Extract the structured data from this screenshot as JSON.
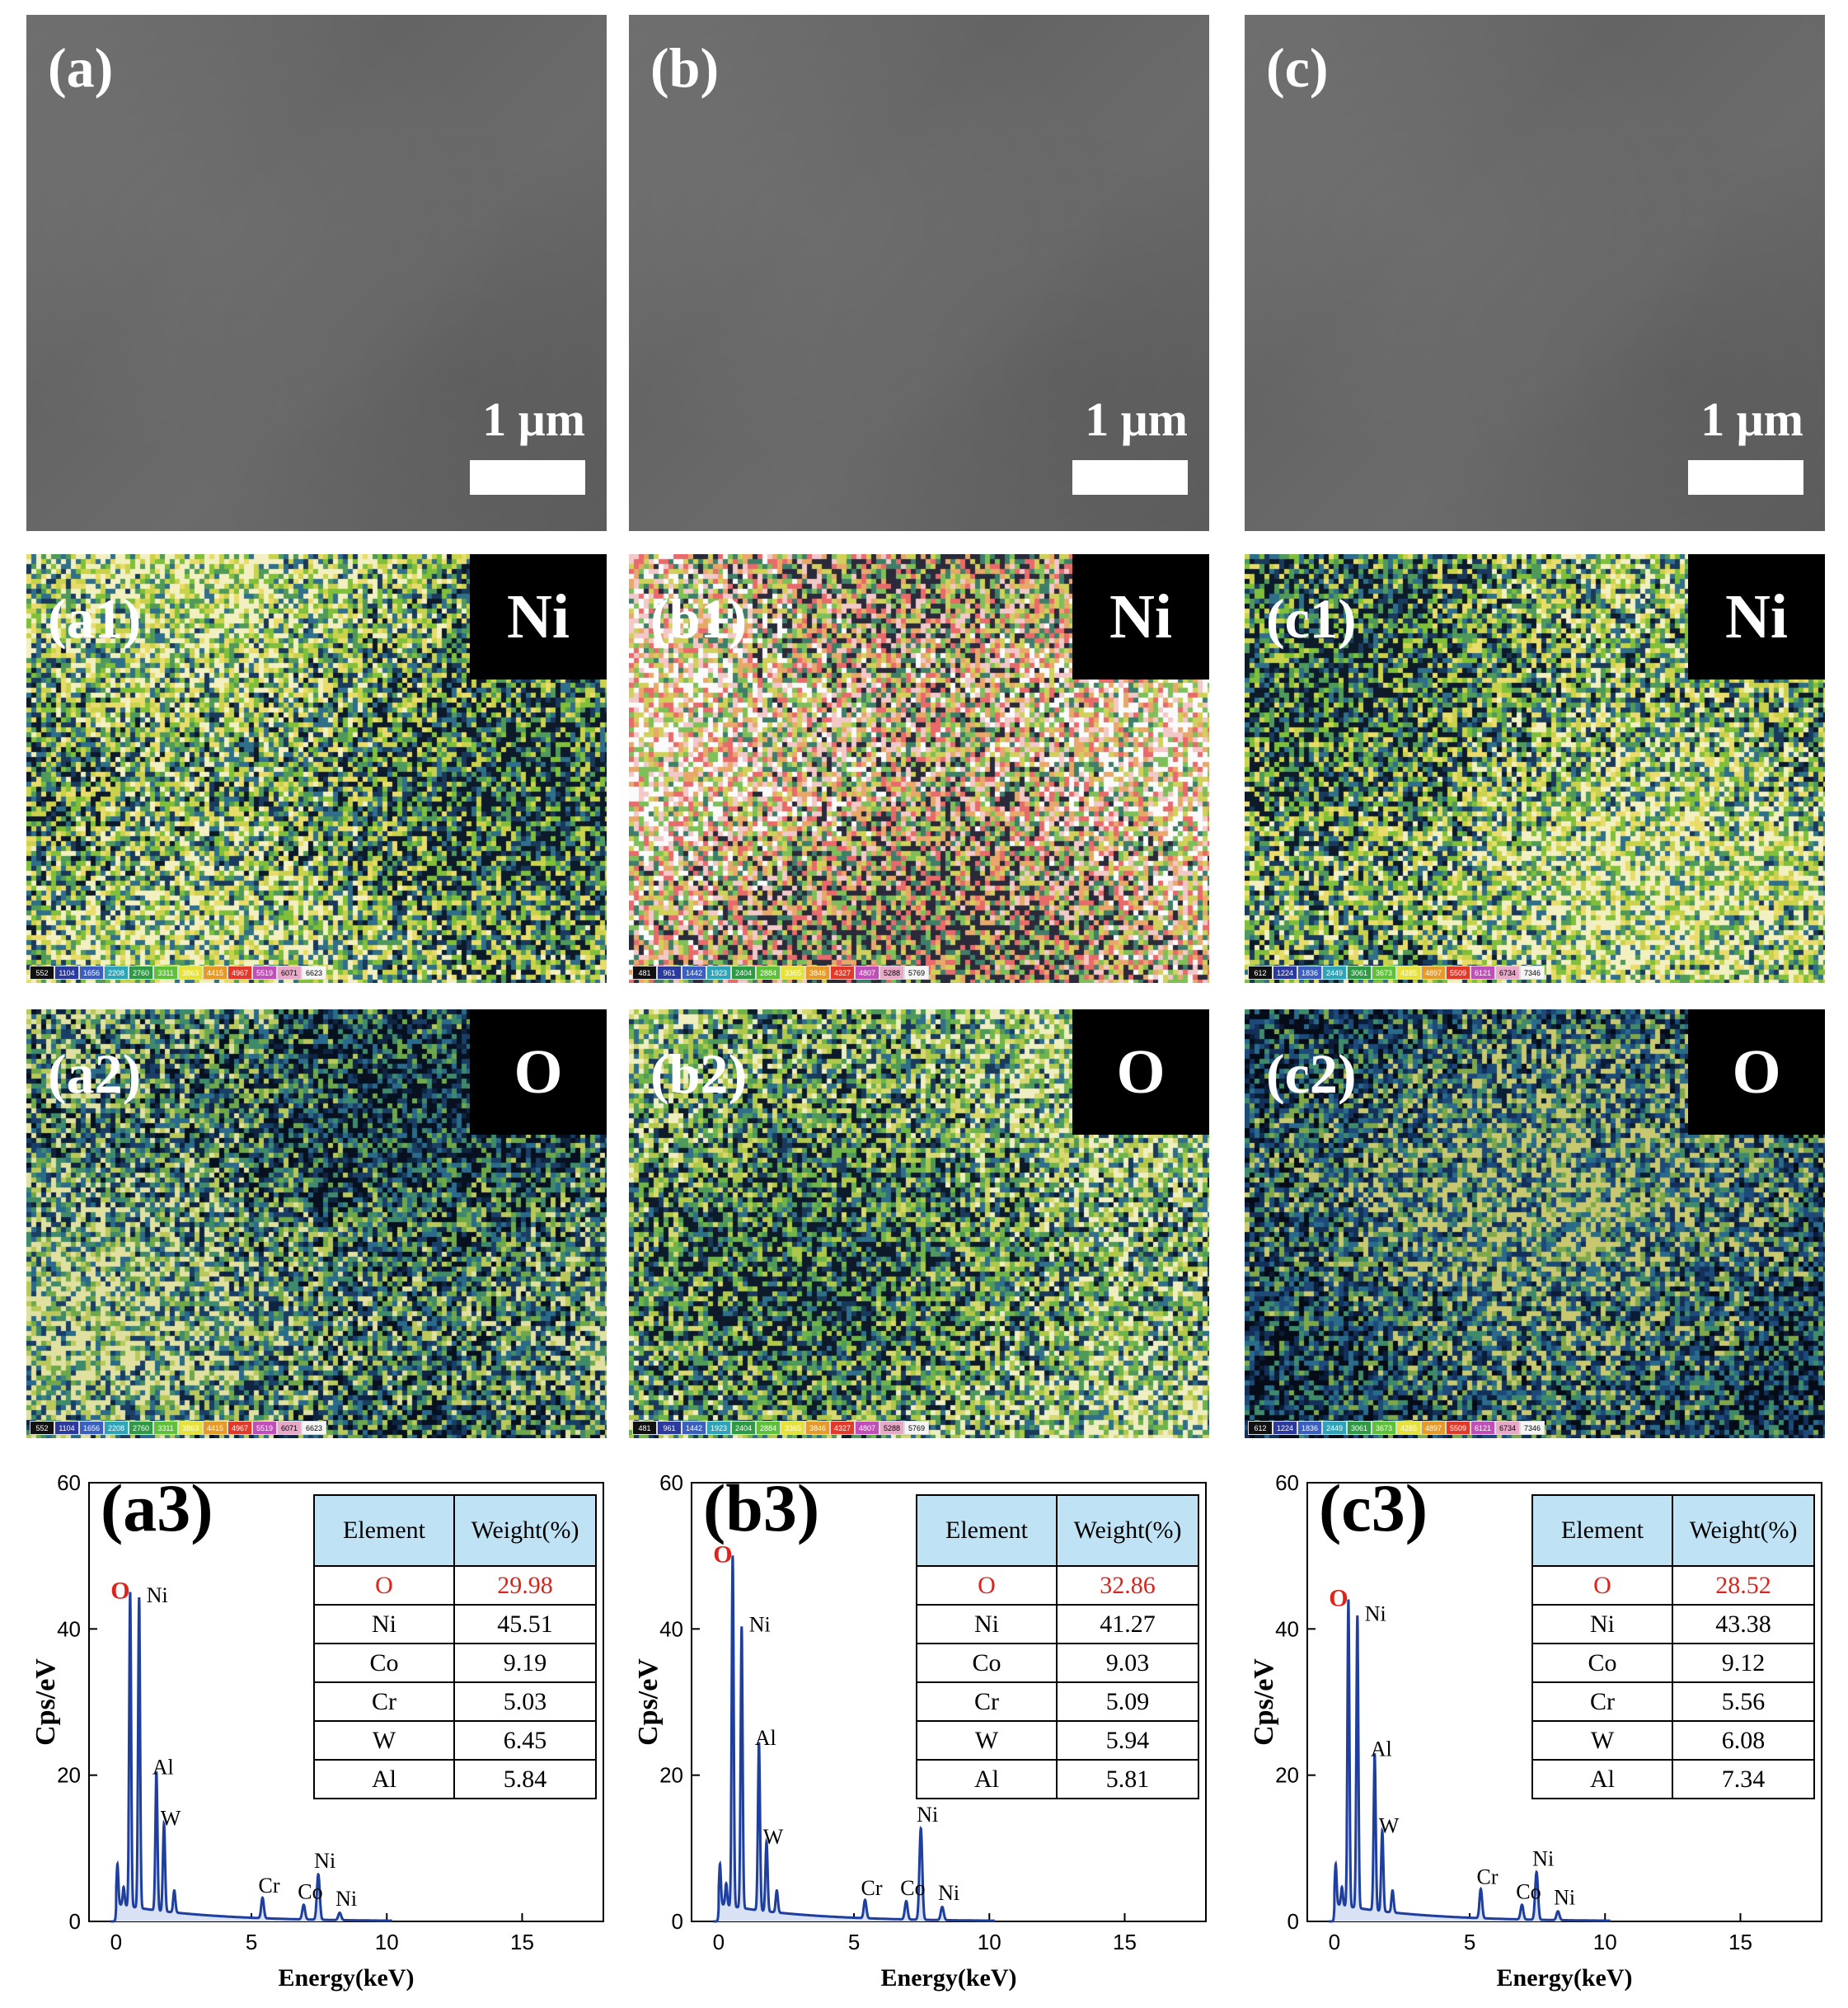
{
  "figure": {
    "colors": {
      "spectrum": "#1f3f9f",
      "oxygen_highlight": "#e0221b",
      "table_header": "#bfe3f5"
    },
    "scale_bar_text": "1 μm",
    "columns": [
      {
        "key": "a",
        "sem_label": "(a)",
        "ni_label": "(a1)",
        "ni_element": "Ni",
        "o_label": "(a2)",
        "o_element": "O",
        "colorbar_values": [
          "552",
          "1104",
          "1656",
          "2208",
          "2760",
          "3311",
          "3863",
          "4415",
          "4967",
          "5519",
          "6071",
          "6623"
        ],
        "map_tone": {
          "ni": "yellow-green",
          "o": "blue-green"
        },
        "eds_label": "(a3)",
        "table_header": [
          "Element",
          "Weight(%)"
        ],
        "table_rows": [
          [
            "O",
            "29.98"
          ],
          [
            "Ni",
            "45.51"
          ],
          [
            "Co",
            "9.19"
          ],
          [
            "Cr",
            "5.03"
          ],
          [
            "W",
            "6.45"
          ],
          [
            "Al",
            "5.84"
          ]
        ]
      },
      {
        "key": "b",
        "sem_label": "(b)",
        "ni_label": "(b1)",
        "ni_element": "Ni",
        "o_label": "(b2)",
        "o_element": "O",
        "colorbar_values": [
          "481",
          "961",
          "1442",
          "1923",
          "2404",
          "2884",
          "3365",
          "3846",
          "4327",
          "4807",
          "5288",
          "5769"
        ],
        "map_tone": {
          "ni": "multicolor-bright",
          "o": "green"
        },
        "eds_label": "(b3)",
        "table_header": [
          "Element",
          "Weight(%)"
        ],
        "table_rows": [
          [
            "O",
            "32.86"
          ],
          [
            "Ni",
            "41.27"
          ],
          [
            "Co",
            "9.03"
          ],
          [
            "Cr",
            "5.09"
          ],
          [
            "W",
            "5.94"
          ],
          [
            "Al",
            "5.81"
          ]
        ]
      },
      {
        "key": "c",
        "sem_label": "(c)",
        "ni_label": "(c1)",
        "ni_element": "Ni",
        "o_label": "(c2)",
        "o_element": "O",
        "colorbar_values": [
          "612",
          "1224",
          "1836",
          "2449",
          "3061",
          "3673",
          "4285",
          "4897",
          "5509",
          "6121",
          "6734",
          "7346"
        ],
        "map_tone": {
          "ni": "yellow-green",
          "o": "dark-blue"
        },
        "eds_label": "(c3)",
        "table_header": [
          "Element",
          "Weight(%)"
        ],
        "table_rows": [
          [
            "O",
            "28.52"
          ],
          [
            "Ni",
            "43.38"
          ],
          [
            "Co",
            "9.12"
          ],
          [
            "Cr",
            "5.56"
          ],
          [
            "W",
            "6.08"
          ],
          [
            "Al",
            "7.34"
          ]
        ]
      }
    ]
  },
  "chart_data": [
    {
      "type": "line",
      "panel": "(a3)",
      "xlabel": "Energy(keV)",
      "ylabel": "Cps/eV",
      "xlim": [
        -1,
        18
      ],
      "ylim": [
        0,
        60
      ],
      "xticks": [
        0,
        5,
        10,
        15
      ],
      "yticks": [
        0,
        20,
        40,
        60
      ],
      "peaks": [
        {
          "x": 0.05,
          "y": 5.5,
          "label": ""
        },
        {
          "x": 0.28,
          "y": 2.5,
          "label": ""
        },
        {
          "x": 0.52,
          "y": 43,
          "label": "O"
        },
        {
          "x": 0.85,
          "y": 42.5,
          "label": "Ni"
        },
        {
          "x": 1.49,
          "y": 19,
          "label": "Al"
        },
        {
          "x": 1.77,
          "y": 12,
          "label": "W"
        },
        {
          "x": 2.15,
          "y": 3,
          "label": ""
        },
        {
          "x": 5.41,
          "y": 2.8,
          "label": "Cr"
        },
        {
          "x": 6.93,
          "y": 2,
          "label": "Co"
        },
        {
          "x": 7.47,
          "y": 6.2,
          "label": "Ni"
        },
        {
          "x": 8.26,
          "y": 1,
          "label": "Ni"
        }
      ]
    },
    {
      "type": "line",
      "panel": "(b3)",
      "xlabel": "Energy(keV)",
      "ylabel": "Cps/eV",
      "xlim": [
        -1,
        18
      ],
      "ylim": [
        0,
        60
      ],
      "xticks": [
        0,
        5,
        10,
        15
      ],
      "yticks": [
        0,
        20,
        40,
        60
      ],
      "peaks": [
        {
          "x": 0.05,
          "y": 5.5,
          "label": ""
        },
        {
          "x": 0.28,
          "y": 3,
          "label": ""
        },
        {
          "x": 0.52,
          "y": 48,
          "label": "O"
        },
        {
          "x": 0.85,
          "y": 38.5,
          "label": "Ni"
        },
        {
          "x": 1.49,
          "y": 23,
          "label": "Al"
        },
        {
          "x": 1.77,
          "y": 9.5,
          "label": "W"
        },
        {
          "x": 2.15,
          "y": 3,
          "label": ""
        },
        {
          "x": 5.41,
          "y": 2.5,
          "label": "Cr"
        },
        {
          "x": 6.93,
          "y": 2.5,
          "label": "Co"
        },
        {
          "x": 7.47,
          "y": 12.5,
          "label": "Ni"
        },
        {
          "x": 8.26,
          "y": 1.8,
          "label": "Ni"
        }
      ]
    },
    {
      "type": "line",
      "panel": "(c3)",
      "xlabel": "Energy(keV)",
      "ylabel": "Cps/eV",
      "xlim": [
        -1,
        18
      ],
      "ylim": [
        0,
        60
      ],
      "xticks": [
        0,
        5,
        10,
        15
      ],
      "yticks": [
        0,
        20,
        40,
        60
      ],
      "peaks": [
        {
          "x": 0.05,
          "y": 5.5,
          "label": ""
        },
        {
          "x": 0.28,
          "y": 2.5,
          "label": ""
        },
        {
          "x": 0.52,
          "y": 42,
          "label": "O"
        },
        {
          "x": 0.85,
          "y": 40,
          "label": "Ni"
        },
        {
          "x": 1.49,
          "y": 21.5,
          "label": "Al"
        },
        {
          "x": 1.77,
          "y": 11,
          "label": "W"
        },
        {
          "x": 2.15,
          "y": 3,
          "label": ""
        },
        {
          "x": 5.41,
          "y": 4,
          "label": "Cr"
        },
        {
          "x": 6.93,
          "y": 2,
          "label": "Co"
        },
        {
          "x": 7.47,
          "y": 6.5,
          "label": "Ni"
        },
        {
          "x": 8.26,
          "y": 1.2,
          "label": "Ni"
        }
      ]
    }
  ]
}
